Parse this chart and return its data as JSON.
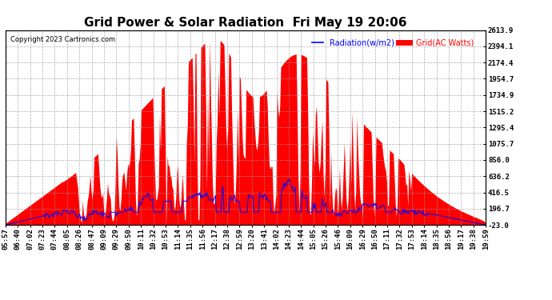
{
  "title": "Grid Power & Solar Radiation  Fri May 19 20:06",
  "copyright": "Copyright 2023 Cartronics.com",
  "legend_radiation": "Radiation(w/m2)",
  "legend_grid": "Grid(AC Watts)",
  "legend_radiation_color": "blue",
  "legend_grid_color": "red",
  "ylabel_right_ticks": [
    2613.9,
    2394.1,
    2174.4,
    1954.7,
    1734.9,
    1515.2,
    1295.4,
    1075.7,
    856.0,
    636.2,
    416.5,
    196.7,
    -23.0
  ],
  "ymin": -23.0,
  "ymax": 2613.9,
  "background_color": "#ffffff",
  "plot_background": "#ffffff",
  "grid_color": "#999999",
  "fill_color": "red",
  "line_color": "blue",
  "title_fontsize": 11,
  "tick_fontsize": 6.5,
  "x_tick_labels": [
    "05:57",
    "06:40",
    "07:02",
    "07:23",
    "07:44",
    "08:05",
    "08:26",
    "08:47",
    "09:09",
    "09:29",
    "09:50",
    "10:11",
    "10:32",
    "10:53",
    "11:14",
    "11:35",
    "11:56",
    "12:17",
    "12:38",
    "12:59",
    "13:20",
    "13:41",
    "14:02",
    "14:23",
    "14:44",
    "15:05",
    "15:26",
    "15:46",
    "16:09",
    "16:29",
    "16:50",
    "17:11",
    "17:32",
    "17:53",
    "18:14",
    "18:35",
    "18:56",
    "19:17",
    "19:38",
    "19:59"
  ]
}
